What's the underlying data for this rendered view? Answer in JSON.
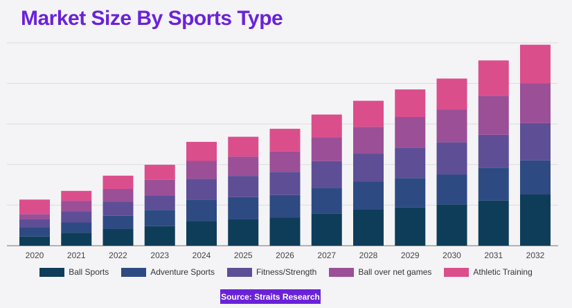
{
  "title": "Market Size By Sports Type",
  "source": "Source: Straits Research",
  "colors": {
    "ball_sports": "#0e3d59",
    "adventure_sports": "#2e4a82",
    "fitness_strength": "#5e4e96",
    "ball_over_net": "#9b4f96",
    "athletic_training": "#db4e8c",
    "grid": "#dcdcdc",
    "axis": "#8a8a8a"
  },
  "chart_data": {
    "type": "bar",
    "stacked": true,
    "title": "Market Size By Sports Type",
    "xlabel": "",
    "ylabel": "",
    "ylim": [
      0,
      100
    ],
    "grid": true,
    "legend_position": "bottom",
    "categories": [
      "2020",
      "2021",
      "2022",
      "2023",
      "2024",
      "2025",
      "2026",
      "2027",
      "2028",
      "2029",
      "2030",
      "2031",
      "2032"
    ],
    "series": [
      {
        "name": "Ball Sports",
        "color": "#0e3d59",
        "values": [
          3.8,
          5.4,
          7.0,
          8.1,
          10.2,
          10.9,
          11.6,
          13.2,
          14.9,
          15.8,
          17.1,
          18.7,
          21.2
        ]
      },
      {
        "name": "Adventure Sports",
        "color": "#2e4a82",
        "values": [
          3.9,
          4.2,
          5.4,
          6.7,
          8.9,
          9.2,
          9.4,
          10.7,
          11.6,
          12.2,
          12.4,
          13.6,
          14.1
        ]
      },
      {
        "name": "Fitness/Strength",
        "color": "#5e4e96",
        "values": [
          3.3,
          4.6,
          5.9,
          6.0,
          8.6,
          8.8,
          9.6,
          11.1,
          11.6,
          12.6,
          13.3,
          13.6,
          15.5
        ]
      },
      {
        "name": "Ball over net games",
        "color": "#9b4f96",
        "values": [
          2.1,
          4.4,
          5.2,
          6.5,
          7.4,
          8.0,
          8.4,
          9.7,
          11.1,
          12.7,
          13.5,
          16.2,
          16.4
        ]
      },
      {
        "name": "Athletic Training",
        "color": "#db4e8c",
        "values": [
          6.0,
          4.1,
          5.5,
          6.2,
          7.9,
          8.2,
          9.4,
          9.6,
          10.8,
          11.4,
          12.9,
          14.6,
          16.0
        ]
      }
    ]
  }
}
